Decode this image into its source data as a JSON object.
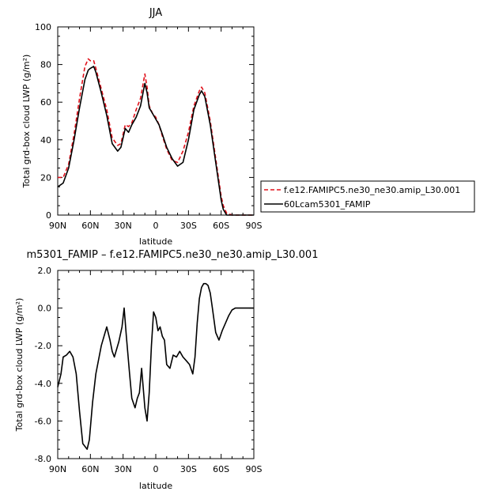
{
  "chart_data": [
    {
      "type": "line",
      "title": "JJA",
      "xlabel": "latitude",
      "ylabel": "Total grd-box cloud LWP (g/m²)",
      "x_ticks": [
        "90N",
        "60N",
        "30N",
        "0",
        "30S",
        "60S",
        "90S"
      ],
      "y_ticks": [
        "0",
        "20",
        "40",
        "60",
        "80",
        "100"
      ],
      "xlim": [
        90,
        -90
      ],
      "ylim": [
        0,
        100
      ],
      "legend_position": "right",
      "series": [
        {
          "name": "f.e12.FAMIPC5.ne30_ne30.amip_L30.001",
          "color": "#e0101a",
          "dash": "dashed",
          "lat": [
            90,
            85,
            80,
            75,
            70,
            65,
            62,
            60,
            57,
            55,
            50,
            45,
            40,
            35,
            32,
            28,
            25,
            22,
            18,
            14,
            10,
            8,
            6,
            3,
            0,
            -3,
            -6,
            -10,
            -15,
            -20,
            -25,
            -30,
            -35,
            -40,
            -42,
            -45,
            -50,
            -55,
            -60,
            -62,
            -65,
            -70,
            -75,
            -80,
            -90
          ],
          "values": [
            20,
            20,
            27,
            43,
            62,
            79,
            83,
            82,
            82,
            78,
            67,
            56,
            41,
            37,
            38,
            48,
            47,
            49,
            56,
            62,
            75,
            68,
            58,
            54,
            52,
            48,
            42,
            35,
            29,
            28,
            34,
            44,
            58,
            66,
            68,
            65,
            50,
            30,
            10,
            5,
            1,
            0,
            0,
            0,
            0
          ]
        },
        {
          "name": "60Lcam5301_FAMIP",
          "color": "#000000",
          "dash": "solid",
          "lat": [
            90,
            85,
            80,
            75,
            70,
            65,
            62,
            60,
            57,
            55,
            50,
            45,
            40,
            35,
            32,
            28,
            25,
            22,
            18,
            14,
            10,
            8,
            6,
            3,
            0,
            -3,
            -6,
            -10,
            -15,
            -20,
            -25,
            -30,
            -35,
            -40,
            -42,
            -45,
            -50,
            -55,
            -60,
            -62,
            -65,
            -70,
            -75,
            -80,
            -90
          ],
          "values": [
            15,
            17,
            25,
            40,
            57,
            72,
            77,
            78,
            79,
            76,
            65,
            53,
            38,
            34,
            36,
            46,
            44,
            48,
            52,
            58,
            70,
            65,
            57,
            54,
            51,
            48,
            43,
            36,
            30,
            26,
            28,
            40,
            56,
            64,
            66,
            63,
            48,
            28,
            8,
            3,
            0,
            0,
            0,
            0,
            0
          ]
        }
      ]
    },
    {
      "type": "line",
      "title": "m5301_FAMIP – f.e12.FAMIPC5.ne30_ne30.amip_L30.001",
      "xlabel": "latitude",
      "ylabel": "Total grd-box cloud LWP (g/m²)",
      "x_ticks": [
        "90N",
        "60N",
        "30N",
        "0",
        "30S",
        "60S",
        "90S"
      ],
      "y_ticks": [
        "-8.0",
        "-6.0",
        "-4.0",
        "-2.0",
        "0.0",
        "2.0"
      ],
      "xlim": [
        90,
        -90
      ],
      "ylim": [
        -8,
        2
      ],
      "series": [
        {
          "color": "#000000",
          "dash": "solid",
          "lat": [
            90,
            87,
            85,
            82,
            79,
            76,
            73,
            70,
            67,
            63,
            61,
            58,
            55,
            50,
            45,
            42,
            40,
            38,
            34,
            31,
            29,
            27,
            24,
            22,
            19,
            17,
            15,
            13,
            10,
            8,
            6,
            4,
            2,
            0,
            -2,
            -4,
            -6,
            -8,
            -10,
            -13,
            -16,
            -19,
            -22,
            -25,
            -28,
            -31,
            -34,
            -36,
            -38,
            -40,
            -42,
            -44,
            -46,
            -48,
            -50,
            -52,
            -55,
            -58,
            -61,
            -64,
            -67,
            -70,
            -73,
            -80,
            -90
          ],
          "values": [
            -4.2,
            -3.5,
            -2.6,
            -2.5,
            -2.3,
            -2.6,
            -3.5,
            -5.5,
            -7.2,
            -7.5,
            -7.0,
            -5.0,
            -3.5,
            -2.0,
            -1.0,
            -1.7,
            -2.3,
            -2.6,
            -1.8,
            -1.0,
            0.0,
            -1.5,
            -3.5,
            -4.8,
            -5.3,
            -4.8,
            -4.5,
            -3.2,
            -5.3,
            -6.0,
            -4.5,
            -2.0,
            -0.2,
            -0.5,
            -1.2,
            -1.0,
            -1.5,
            -1.7,
            -3.0,
            -3.2,
            -2.5,
            -2.6,
            -2.3,
            -2.6,
            -2.8,
            -3.0,
            -3.5,
            -2.6,
            -0.8,
            0.5,
            1.1,
            1.3,
            1.3,
            1.2,
            0.8,
            0.0,
            -1.3,
            -1.7,
            -1.2,
            -0.8,
            -0.4,
            -0.1,
            0.0,
            0.0,
            0.0
          ]
        }
      ]
    }
  ]
}
